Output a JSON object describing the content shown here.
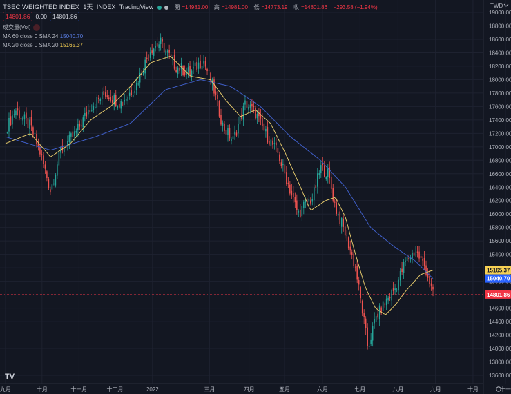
{
  "header": {
    "title": "TSEC WEIGHTED INDEX",
    "interval": "1天",
    "exchange": "INDEX",
    "source": "TradingView",
    "ohlc": [
      {
        "key": "開",
        "value": "=14981.00"
      },
      {
        "key": "高",
        "value": "=14981.00"
      },
      {
        "key": "低",
        "value": "=14773.19"
      },
      {
        "key": "收",
        "value": "=14801.86"
      },
      {
        "key": "",
        "value": "−293.58 (−1.94%)"
      }
    ],
    "box_last": "14801.86",
    "box_change": "0.00",
    "box_prev": "14801.86"
  },
  "indicators": {
    "volume_label": "成交量(Vol)",
    "warn_symbol": "!",
    "ma60_label": "MA 60 close 0 SMA 24",
    "ma60_value": "15040.70",
    "ma20_label": "MA 20 close 0 SMA 20",
    "ma20_value": "15165.37"
  },
  "logo_text": "TV",
  "colors": {
    "background": "#131722",
    "grid": "#1e2230",
    "up": "#26a69a",
    "down": "#ef5350",
    "ma60": "#3f5ec7",
    "ma20": "#e3c86b",
    "text": "#b2b5be",
    "last_price": "#f23645"
  },
  "chart_data": {
    "type": "candlestick",
    "title": "TSEC WEIGHTED INDEX",
    "currency": "TWD",
    "ylim": [
      13500,
      19100
    ],
    "y_ticks": [
      13600,
      13800,
      14000,
      14200,
      14400,
      14600,
      14800,
      15000,
      15200,
      15400,
      15600,
      15800,
      16000,
      16200,
      16400,
      16600,
      16800,
      17000,
      17200,
      17400,
      17600,
      17800,
      18000,
      18200,
      18400,
      18600,
      18800,
      19000
    ],
    "x_labels": [
      {
        "label": "九月",
        "t": 0.0
      },
      {
        "label": "十月",
        "t": 0.073
      },
      {
        "label": "十一月",
        "t": 0.147
      },
      {
        "label": "十二月",
        "t": 0.219
      },
      {
        "label": "2022",
        "t": 0.294
      },
      {
        "label": "三月",
        "t": 0.408
      },
      {
        "label": "四月",
        "t": 0.487
      },
      {
        "label": "五月",
        "t": 0.558
      },
      {
        "label": "六月",
        "t": 0.634
      },
      {
        "label": "七月",
        "t": 0.709
      },
      {
        "label": "八月",
        "t": 0.785
      },
      {
        "label": "九月",
        "t": 0.86
      },
      {
        "label": "十月",
        "t": 0.935
      },
      {
        "label": "十一",
        "t": 1.0
      }
    ],
    "close_keypoints": [
      [
        0.0,
        17250
      ],
      [
        0.02,
        17550
      ],
      [
        0.05,
        17300
      ],
      [
        0.07,
        16900
      ],
      [
        0.09,
        16350
      ],
      [
        0.11,
        16950
      ],
      [
        0.14,
        17200
      ],
      [
        0.17,
        17600
      ],
      [
        0.2,
        17800
      ],
      [
        0.23,
        17650
      ],
      [
        0.26,
        17900
      ],
      [
        0.29,
        18450
      ],
      [
        0.31,
        18550
      ],
      [
        0.34,
        18200
      ],
      [
        0.37,
        18100
      ],
      [
        0.395,
        18300
      ],
      [
        0.415,
        17900
      ],
      [
        0.435,
        17300
      ],
      [
        0.455,
        17100
      ],
      [
        0.48,
        17650
      ],
      [
        0.5,
        17500
      ],
      [
        0.52,
        17200
      ],
      [
        0.545,
        16900
      ],
      [
        0.565,
        16450
      ],
      [
        0.585,
        16000
      ],
      [
        0.6,
        16150
      ],
      [
        0.615,
        16250
      ],
      [
        0.63,
        16700
      ],
      [
        0.645,
        16600
      ],
      [
        0.66,
        16100
      ],
      [
        0.68,
        15700
      ],
      [
        0.7,
        15200
      ],
      [
        0.715,
        14500
      ],
      [
        0.725,
        14000
      ],
      [
        0.74,
        14450
      ],
      [
        0.76,
        14700
      ],
      [
        0.78,
        14900
      ],
      [
        0.8,
        15300
      ],
      [
        0.82,
        15450
      ],
      [
        0.84,
        15200
      ],
      [
        0.855,
        14800
      ]
    ],
    "ma20_keypoints": [
      [
        0.0,
        17050
      ],
      [
        0.05,
        17200
      ],
      [
        0.09,
        16850
      ],
      [
        0.13,
        17050
      ],
      [
        0.17,
        17400
      ],
      [
        0.21,
        17600
      ],
      [
        0.25,
        17900
      ],
      [
        0.29,
        18250
      ],
      [
        0.33,
        18350
      ],
      [
        0.37,
        18050
      ],
      [
        0.41,
        18000
      ],
      [
        0.44,
        17700
      ],
      [
        0.47,
        17450
      ],
      [
        0.5,
        17550
      ],
      [
        0.53,
        17350
      ],
      [
        0.56,
        16900
      ],
      [
        0.59,
        16400
      ],
      [
        0.61,
        16050
      ],
      [
        0.64,
        16200
      ],
      [
        0.66,
        16250
      ],
      [
        0.68,
        15950
      ],
      [
        0.7,
        15400
      ],
      [
        0.72,
        14900
      ],
      [
        0.74,
        14600
      ],
      [
        0.76,
        14500
      ],
      [
        0.78,
        14650
      ],
      [
        0.8,
        14850
      ],
      [
        0.83,
        15100
      ],
      [
        0.855,
        15165
      ]
    ],
    "ma60_keypoints": [
      [
        0.0,
        17150
      ],
      [
        0.09,
        16950
      ],
      [
        0.18,
        17150
      ],
      [
        0.25,
        17350
      ],
      [
        0.32,
        17850
      ],
      [
        0.39,
        18000
      ],
      [
        0.45,
        17900
      ],
      [
        0.51,
        17600
      ],
      [
        0.57,
        17150
      ],
      [
        0.63,
        16800
      ],
      [
        0.68,
        16400
      ],
      [
        0.73,
        15800
      ],
      [
        0.78,
        15500
      ],
      [
        0.82,
        15300
      ],
      [
        0.855,
        15040
      ]
    ],
    "last_price": 14801.86,
    "price_labels": [
      {
        "value": 15165.37,
        "text": "15165.37",
        "color": "#f7d154",
        "text_color": "#131722"
      },
      {
        "value": 15040.7,
        "text": "15040.70",
        "color": "#2962ff",
        "text_color": "#ffffff"
      },
      {
        "value": 14801.86,
        "text": "14801.86",
        "color": "#f23645",
        "text_color": "#ffffff"
      }
    ],
    "grid": true
  }
}
